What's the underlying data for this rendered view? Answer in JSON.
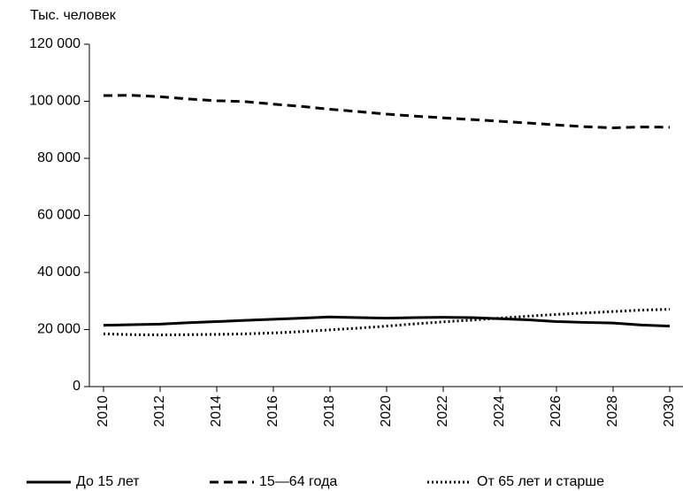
{
  "chart_data": {
    "type": "line",
    "y_label": "Тыс. человек",
    "x": [
      2010,
      2011,
      2012,
      2013,
      2014,
      2015,
      2016,
      2017,
      2018,
      2019,
      2020,
      2021,
      2022,
      2023,
      2024,
      2025,
      2026,
      2027,
      2028,
      2029,
      2030
    ],
    "xlim": [
      2009.5,
      2030.5
    ],
    "xticks": [
      2010,
      2012,
      2014,
      2016,
      2018,
      2020,
      2022,
      2024,
      2026,
      2028,
      2030
    ],
    "ylim": [
      0,
      120000
    ],
    "yticks": [
      0,
      {
        "value": 20000,
        "label": "20 000"
      },
      {
        "value": 40000,
        "label": "40 000"
      },
      {
        "value": 60000,
        "label": "60 000"
      },
      {
        "value": 80000,
        "label": "80 000"
      },
      {
        "value": 100000,
        "label": "100 000"
      },
      {
        "value": 120000,
        "label": "120 000"
      }
    ],
    "series": [
      {
        "name": "До 15 лет",
        "color": "#000000",
        "dash": "solid",
        "values": [
          21500,
          21700,
          21900,
          22400,
          22800,
          23200,
          23600,
          24000,
          24400,
          24200,
          24000,
          24200,
          24300,
          24200,
          23800,
          23400,
          22800,
          22500,
          22300,
          21600,
          21200
        ]
      },
      {
        "name": "15—64 года",
        "color": "#000000",
        "dash": "dashed",
        "values": [
          102000,
          102100,
          101600,
          100800,
          100200,
          99900,
          99000,
          98200,
          97200,
          96400,
          95500,
          94800,
          94200,
          93600,
          93000,
          92400,
          91700,
          91100,
          90700,
          91000,
          90900
        ]
      },
      {
        "name": "От 65 лет и старше",
        "color": "#000000",
        "dash": "dotted",
        "values": [
          18500,
          18200,
          18100,
          18200,
          18300,
          18500,
          18800,
          19300,
          19900,
          20500,
          21200,
          22000,
          22700,
          23300,
          24000,
          24700,
          25300,
          25800,
          26300,
          26800,
          27100
        ]
      }
    ]
  }
}
